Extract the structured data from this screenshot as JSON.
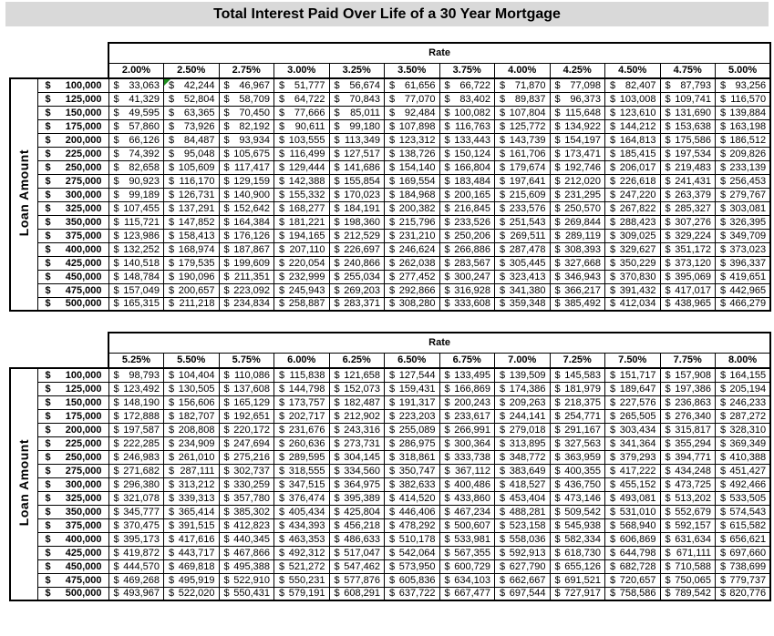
{
  "title": "Total Interest Paid Over Life of a 30 Year Mortgage",
  "currency_symbol": "$",
  "colors": {
    "title_bg": "#d9d9d9",
    "border": "#000000",
    "comment_flag": "#1e8e1e",
    "background": "#ffffff"
  },
  "annotations": {
    "comment_flag_cell": {
      "table": 0,
      "row": 0,
      "col": 1
    }
  },
  "chart_data": [
    {
      "type": "table",
      "header": "Rate",
      "row_header": "Loan Amount",
      "rates": [
        "2.00%",
        "2.50%",
        "2.75%",
        "3.00%",
        "3.25%",
        "3.50%",
        "3.75%",
        "4.00%",
        "4.25%",
        "4.50%",
        "4.75%",
        "5.00%"
      ],
      "loan_amounts": [
        "100,000",
        "125,000",
        "150,000",
        "175,000",
        "200,000",
        "225,000",
        "250,000",
        "275,000",
        "300,000",
        "325,000",
        "350,000",
        "375,000",
        "400,000",
        "425,000",
        "450,000",
        "475,000",
        "500,000"
      ],
      "values": [
        [
          "33,063",
          "42,244",
          "46,967",
          "51,777",
          "56,674",
          "61,656",
          "66,722",
          "71,870",
          "77,098",
          "82,407",
          "87,793",
          "93,256"
        ],
        [
          "41,329",
          "52,804",
          "58,709",
          "64,722",
          "70,843",
          "77,070",
          "83,402",
          "89,837",
          "96,373",
          "103,008",
          "109,741",
          "116,570"
        ],
        [
          "49,595",
          "63,365",
          "70,450",
          "77,666",
          "85,011",
          "92,484",
          "100,082",
          "107,804",
          "115,648",
          "123,610",
          "131,690",
          "139,884"
        ],
        [
          "57,860",
          "73,926",
          "82,192",
          "90,611",
          "99,180",
          "107,898",
          "116,763",
          "125,772",
          "134,922",
          "144,212",
          "153,638",
          "163,198"
        ],
        [
          "66,126",
          "84,487",
          "93,934",
          "103,555",
          "113,349",
          "123,312",
          "133,443",
          "143,739",
          "154,197",
          "164,813",
          "175,586",
          "186,512"
        ],
        [
          "74,392",
          "95,048",
          "105,675",
          "116,499",
          "127,517",
          "138,726",
          "150,124",
          "161,706",
          "173,471",
          "185,415",
          "197,534",
          "209,826"
        ],
        [
          "82,658",
          "105,609",
          "117,417",
          "129,444",
          "141,686",
          "154,140",
          "166,804",
          "179,674",
          "192,746",
          "206,017",
          "219,483",
          "233,139"
        ],
        [
          "90,923",
          "116,170",
          "129,159",
          "142,388",
          "155,854",
          "169,554",
          "183,484",
          "197,641",
          "212,020",
          "226,618",
          "241,431",
          "256,453"
        ],
        [
          "99,189",
          "126,731",
          "140,900",
          "155,332",
          "170,023",
          "184,968",
          "200,165",
          "215,609",
          "231,295",
          "247,220",
          "263,379",
          "279,767"
        ],
        [
          "107,455",
          "137,291",
          "152,642",
          "168,277",
          "184,191",
          "200,382",
          "216,845",
          "233,576",
          "250,570",
          "267,822",
          "285,327",
          "303,081"
        ],
        [
          "115,721",
          "147,852",
          "164,384",
          "181,221",
          "198,360",
          "215,796",
          "233,526",
          "251,543",
          "269,844",
          "288,423",
          "307,276",
          "326,395"
        ],
        [
          "123,986",
          "158,413",
          "176,126",
          "194,165",
          "212,529",
          "231,210",
          "250,206",
          "269,511",
          "289,119",
          "309,025",
          "329,224",
          "349,709"
        ],
        [
          "132,252",
          "168,974",
          "187,867",
          "207,110",
          "226,697",
          "246,624",
          "266,886",
          "287,478",
          "308,393",
          "329,627",
          "351,172",
          "373,023"
        ],
        [
          "140,518",
          "179,535",
          "199,609",
          "220,054",
          "240,866",
          "262,038",
          "283,567",
          "305,445",
          "327,668",
          "350,229",
          "373,120",
          "396,337"
        ],
        [
          "148,784",
          "190,096",
          "211,351",
          "232,999",
          "255,034",
          "277,452",
          "300,247",
          "323,413",
          "346,943",
          "370,830",
          "395,069",
          "419,651"
        ],
        [
          "157,049",
          "200,657",
          "223,092",
          "245,943",
          "269,203",
          "292,866",
          "316,928",
          "341,380",
          "366,217",
          "391,432",
          "417,017",
          "442,965"
        ],
        [
          "165,315",
          "211,218",
          "234,834",
          "258,887",
          "283,371",
          "308,280",
          "333,608",
          "359,348",
          "385,492",
          "412,034",
          "438,965",
          "466,279"
        ]
      ]
    },
    {
      "type": "table",
      "header": "Rate",
      "row_header": "Loan Amount",
      "rates": [
        "5.25%",
        "5.50%",
        "5.75%",
        "6.00%",
        "6.25%",
        "6.50%",
        "6.75%",
        "7.00%",
        "7.25%",
        "7.50%",
        "7.75%",
        "8.00%"
      ],
      "loan_amounts": [
        "100,000",
        "125,000",
        "150,000",
        "175,000",
        "200,000",
        "225,000",
        "250,000",
        "275,000",
        "300,000",
        "325,000",
        "350,000",
        "375,000",
        "400,000",
        "425,000",
        "450,000",
        "475,000",
        "500,000"
      ],
      "values": [
        [
          "98,793",
          "104,404",
          "110,086",
          "115,838",
          "121,658",
          "127,544",
          "133,495",
          "139,509",
          "145,583",
          "151,717",
          "157,908",
          "164,155"
        ],
        [
          "123,492",
          "130,505",
          "137,608",
          "144,798",
          "152,073",
          "159,431",
          "166,869",
          "174,386",
          "181,979",
          "189,647",
          "197,386",
          "205,194"
        ],
        [
          "148,190",
          "156,606",
          "165,129",
          "173,757",
          "182,487",
          "191,317",
          "200,243",
          "209,263",
          "218,375",
          "227,576",
          "236,863",
          "246,233"
        ],
        [
          "172,888",
          "182,707",
          "192,651",
          "202,717",
          "212,902",
          "223,203",
          "233,617",
          "244,141",
          "254,771",
          "265,505",
          "276,340",
          "287,272"
        ],
        [
          "197,587",
          "208,808",
          "220,172",
          "231,676",
          "243,316",
          "255,089",
          "266,991",
          "279,018",
          "291,167",
          "303,434",
          "315,817",
          "328,310"
        ],
        [
          "222,285",
          "234,909",
          "247,694",
          "260,636",
          "273,731",
          "286,975",
          "300,364",
          "313,895",
          "327,563",
          "341,364",
          "355,294",
          "369,349"
        ],
        [
          "246,983",
          "261,010",
          "275,216",
          "289,595",
          "304,145",
          "318,861",
          "333,738",
          "348,772",
          "363,959",
          "379,293",
          "394,771",
          "410,388"
        ],
        [
          "271,682",
          "287,111",
          "302,737",
          "318,555",
          "334,560",
          "350,747",
          "367,112",
          "383,649",
          "400,355",
          "417,222",
          "434,248",
          "451,427"
        ],
        [
          "296,380",
          "313,212",
          "330,259",
          "347,515",
          "364,975",
          "382,633",
          "400,486",
          "418,527",
          "436,750",
          "455,152",
          "473,725",
          "492,466"
        ],
        [
          "321,078",
          "339,313",
          "357,780",
          "376,474",
          "395,389",
          "414,520",
          "433,860",
          "453,404",
          "473,146",
          "493,081",
          "513,202",
          "533,505"
        ],
        [
          "345,777",
          "365,414",
          "385,302",
          "405,434",
          "425,804",
          "446,406",
          "467,234",
          "488,281",
          "509,542",
          "531,010",
          "552,679",
          "574,543"
        ],
        [
          "370,475",
          "391,515",
          "412,823",
          "434,393",
          "456,218",
          "478,292",
          "500,607",
          "523,158",
          "545,938",
          "568,940",
          "592,157",
          "615,582"
        ],
        [
          "395,173",
          "417,616",
          "440,345",
          "463,353",
          "486,633",
          "510,178",
          "533,981",
          "558,036",
          "582,334",
          "606,869",
          "631,634",
          "656,621"
        ],
        [
          "419,872",
          "443,717",
          "467,866",
          "492,312",
          "517,047",
          "542,064",
          "567,355",
          "592,913",
          "618,730",
          "644,798",
          "671,111",
          "697,660"
        ],
        [
          "444,570",
          "469,818",
          "495,388",
          "521,272",
          "547,462",
          "573,950",
          "600,729",
          "627,790",
          "655,126",
          "682,728",
          "710,588",
          "738,699"
        ],
        [
          "469,268",
          "495,919",
          "522,910",
          "550,231",
          "577,876",
          "605,836",
          "634,103",
          "662,667",
          "691,521",
          "720,657",
          "750,065",
          "779,737"
        ],
        [
          "493,967",
          "522,020",
          "550,431",
          "579,191",
          "608,291",
          "637,722",
          "667,477",
          "697,544",
          "727,917",
          "758,586",
          "789,542",
          "820,776"
        ]
      ]
    }
  ]
}
